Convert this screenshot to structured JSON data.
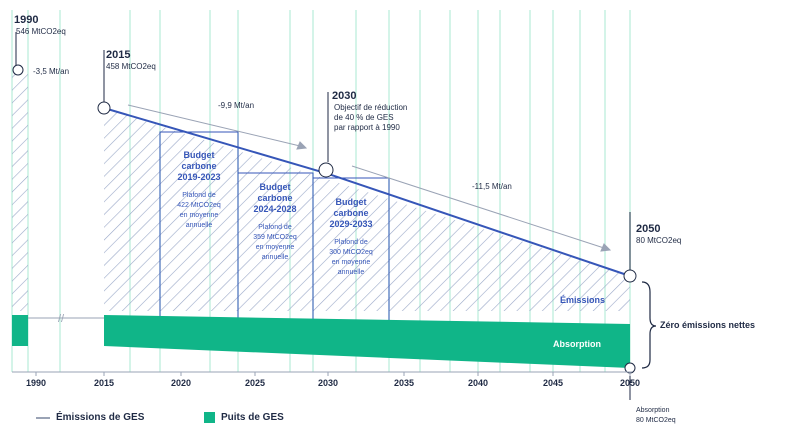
{
  "colors": {
    "emissions_line": "#3656b8",
    "absorption": "#10b588",
    "hatch": "#9aa8c8",
    "budget_text": "#3656b8",
    "grid_green": "#8fe3c6",
    "text": "#1f2a44"
  },
  "annotations": {
    "y1990": "1990",
    "v1990": "546 MtCO2eq",
    "rate1990": "-3,5 Mt/an",
    "y2015": "2015",
    "v2015": "458 MtCO2eq",
    "rate2015": "-9,9 Mt/an",
    "y2030": "2030",
    "obj2030": [
      "Objectif de réduction",
      "de 40 % de GES",
      "par rapport à 1990"
    ],
    "rate2030": "-11,5 Mt/an",
    "y2050": "2050",
    "v2050": "80 MtCO2eq",
    "emissions_label": "Émissions",
    "absorption_label": "Absorption",
    "zero_net": "Zéro émissions nettes",
    "absorption_2050_title": "Absorption",
    "absorption_2050_value": "80 MtCO2eq"
  },
  "budgets": [
    {
      "title": [
        "Budget",
        "carbone",
        "2019-2023"
      ],
      "body": [
        "Plafond de",
        "422 MtCO2eq",
        "en moyenne",
        "annuelle"
      ]
    },
    {
      "title": [
        "Budget",
        "carbone",
        "2024-2028"
      ],
      "body": [
        "Plafond de",
        "359 MtCO2eq",
        "en moyenne",
        "annuelle"
      ]
    },
    {
      "title": [
        "Budget",
        "carbone",
        "2029-2033"
      ],
      "body": [
        "Plafond de",
        "300 MtCO2eq",
        "en moyenne",
        "annuelle"
      ]
    }
  ],
  "legend": {
    "emissions": "Émissions de GES",
    "sinks": "Puits de GES"
  },
  "chart_data": {
    "type": "area",
    "x_ticks": [
      "1990",
      "2015",
      "2020",
      "2025",
      "2030",
      "2035",
      "2040",
      "2045",
      "2050"
    ],
    "series": [
      {
        "name": "Émissions",
        "x": [
          1990,
          2015,
          2030,
          2050
        ],
        "y": [
          546,
          458,
          310,
          80
        ]
      },
      {
        "name": "Absorption",
        "x": [
          2015,
          2050
        ],
        "y": [
          80,
          80
        ]
      }
    ],
    "budgets": [
      {
        "period": "2019-2023",
        "cap": 422
      },
      {
        "period": "2024-2028",
        "cap": 359
      },
      {
        "period": "2029-2033",
        "cap": 300
      }
    ]
  }
}
